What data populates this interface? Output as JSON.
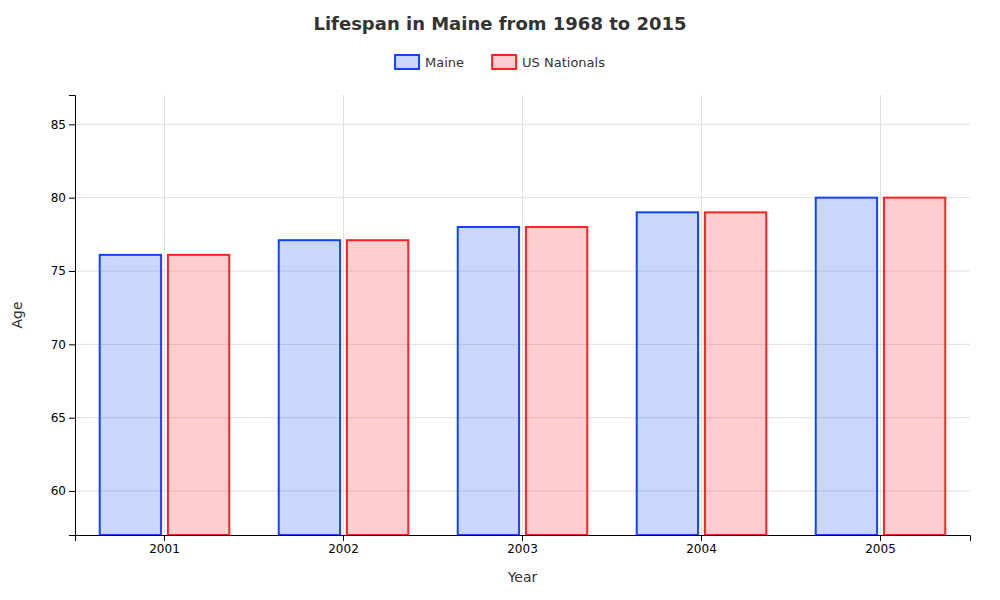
{
  "chart_data": {
    "type": "bar",
    "title": "Lifespan in Maine from 1968 to 2015",
    "x_label": "Year",
    "y_label": "Age",
    "categories": [
      "2001",
      "2002",
      "2003",
      "2004",
      "2005"
    ],
    "series": [
      {
        "name": "Maine",
        "color": "#1144FF",
        "values": [
          76.1,
          77.1,
          78.0,
          79.0,
          80.0
        ]
      },
      {
        "name": "US Nationals",
        "color": "#FF2222",
        "values": [
          76.1,
          77.1,
          78.0,
          79.0,
          80.0
        ]
      }
    ],
    "ylim": [
      57,
      87
    ],
    "yticks": [
      60,
      65,
      70,
      75,
      80,
      85
    ],
    "grid": true,
    "legend": "top"
  }
}
